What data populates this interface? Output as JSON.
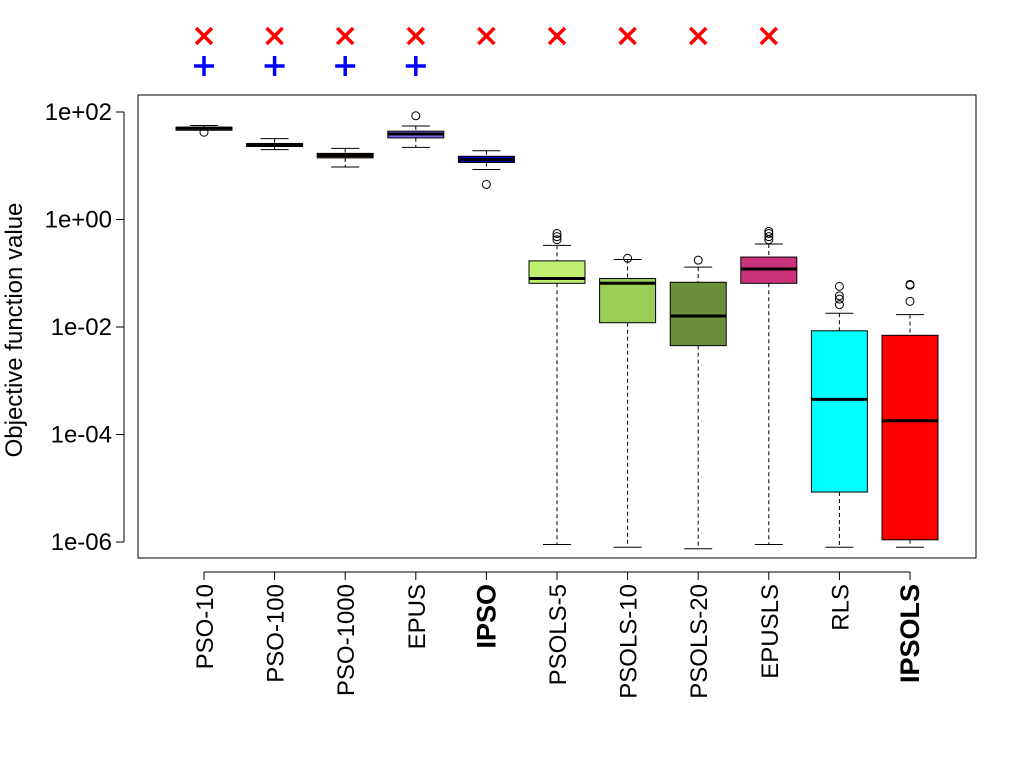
{
  "chart_data": {
    "type": "box",
    "ylabel": "Objective function value",
    "xlabel": "",
    "y_scale": "log10",
    "ylim": [
      3e-07,
      200
    ],
    "y_ticks": [
      {
        "value": 100,
        "label": "1e+02"
      },
      {
        "value": 1,
        "label": "1e+00"
      },
      {
        "value": 0.01,
        "label": "1e-02"
      },
      {
        "value": 0.0001,
        "label": "1e-04"
      },
      {
        "value": 1e-06,
        "label": "1e-06"
      }
    ],
    "grid": false,
    "categories": [
      "PSO-10",
      "PSO-100",
      "PSO-1000",
      "EPUS",
      "IPSO",
      "PSOLS-5",
      "PSOLS-10",
      "PSOLS-20",
      "EPUSLS",
      "RLS",
      "IPSOLS"
    ],
    "bold_categories": [
      "IPSO",
      "IPSOLS"
    ],
    "boxes": [
      {
        "name": "PSO-10",
        "color": "#8B4513",
        "whisker_low": 47,
        "q1": 49,
        "median": 50,
        "q3": 52,
        "whisker_high": 56,
        "outliers": [
          42
        ]
      },
      {
        "name": "PSO-100",
        "color": "#A0522D",
        "whisker_low": 20,
        "q1": 23,
        "median": 24,
        "q3": 26,
        "whisker_high": 32,
        "outliers": []
      },
      {
        "name": "PSO-1000",
        "color": "#6B4226",
        "whisker_low": 9.5,
        "q1": 14,
        "median": 15.5,
        "q3": 17,
        "whisker_high": 21,
        "outliers": []
      },
      {
        "name": "EPUS",
        "color": "#7B68EE",
        "whisker_low": 22,
        "q1": 33,
        "median": 39,
        "q3": 44,
        "whisker_high": 55,
        "outliers": [
          85
        ]
      },
      {
        "name": "IPSO",
        "color": "#0000CD",
        "whisker_low": 8.5,
        "q1": 11.5,
        "median": 13,
        "q3": 15,
        "whisker_high": 19,
        "outliers": [
          4.5
        ]
      },
      {
        "name": "PSOLS-5",
        "color": "#BFEF6F",
        "whisker_low": 9e-07,
        "q1": 0.065,
        "median": 0.08,
        "q3": 0.17,
        "whisker_high": 0.33,
        "outliers": [
          0.42,
          0.48,
          0.55
        ]
      },
      {
        "name": "PSOLS-10",
        "color": "#9ACD55",
        "whisker_low": 8e-07,
        "q1": 0.012,
        "median": 0.065,
        "q3": 0.08,
        "whisker_high": 0.18,
        "outliers": [
          0.19
        ]
      },
      {
        "name": "PSOLS-20",
        "color": "#6B8E3A",
        "whisker_low": 7.5e-07,
        "q1": 0.0045,
        "median": 0.016,
        "q3": 0.068,
        "whisker_high": 0.13,
        "outliers": [
          0.175
        ]
      },
      {
        "name": "EPUSLS",
        "color": "#C83379",
        "whisker_low": 9e-07,
        "q1": 0.065,
        "median": 0.12,
        "q3": 0.2,
        "whisker_high": 0.35,
        "outliers": [
          0.42,
          0.48,
          0.55,
          0.6
        ]
      },
      {
        "name": "RLS",
        "color": "#00FFFF",
        "whisker_low": 8e-07,
        "q1": 8.5e-06,
        "median": 0.00045,
        "q3": 0.0085,
        "whisker_high": 0.018,
        "outliers": [
          0.026,
          0.033,
          0.038,
          0.057
        ]
      },
      {
        "name": "IPSOLS",
        "color": "#FF0000",
        "whisker_low": 8e-07,
        "q1": 1.1e-06,
        "median": 0.00018,
        "q3": 0.007,
        "whisker_high": 0.017,
        "outliers": [
          0.03,
          0.06,
          0.062
        ]
      }
    ],
    "markers_x": {
      "symbol": "×",
      "color": "#FF0000",
      "categories": [
        "PSO-10",
        "PSO-100",
        "PSO-1000",
        "EPUS",
        "IPSO",
        "PSOLS-5",
        "PSOLS-10",
        "PSOLS-20",
        "EPUSLS"
      ]
    },
    "markers_plus": {
      "symbol": "+",
      "color": "#0000FF",
      "categories": [
        "PSO-10",
        "PSO-100",
        "PSO-1000",
        "EPUS"
      ]
    }
  }
}
